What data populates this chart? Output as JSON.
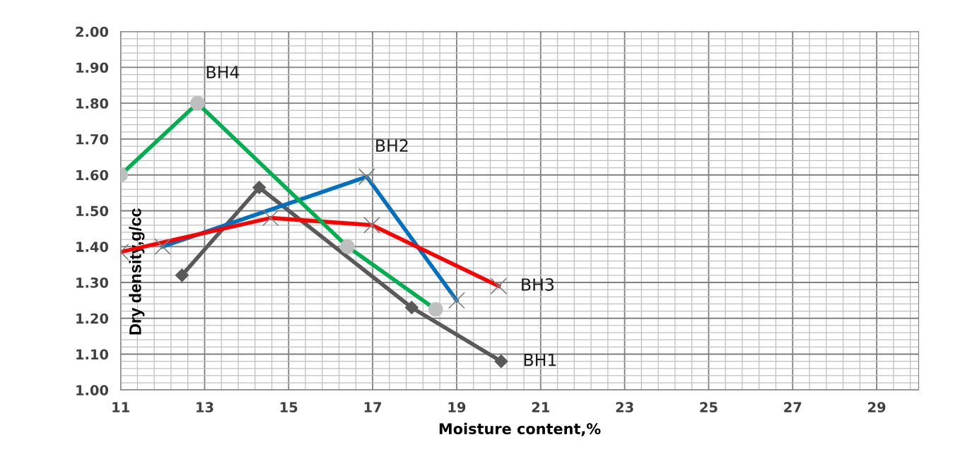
{
  "chart_data": {
    "type": "line",
    "xlabel": "Moisture content,%",
    "ylabel": "Dry density,g/cc",
    "xlim": [
      11,
      30
    ],
    "xticks": [
      11,
      13,
      15,
      17,
      19,
      21,
      23,
      25,
      27,
      29
    ],
    "ylim": [
      1.0,
      2.0
    ],
    "yticks": [
      {
        "value": 1.0,
        "label": "1.00"
      },
      {
        "value": 1.1,
        "label": "1.10"
      },
      {
        "value": 1.2,
        "label": "1.20"
      },
      {
        "value": 1.3,
        "label": "1.30"
      },
      {
        "value": 1.4,
        "label": "1.40"
      },
      {
        "value": 1.5,
        "label": "1.50"
      },
      {
        "value": 1.6,
        "label": "1.60"
      },
      {
        "value": 1.7,
        "label": "1.70"
      },
      {
        "value": 1.8,
        "label": "1.80"
      },
      {
        "value": 1.9,
        "label": "1.90"
      },
      {
        "value": 2.0,
        "label": "2.00"
      }
    ],
    "grid": true,
    "legend": false,
    "series": [
      {
        "color": "#595959",
        "marker": "diamond",
        "x": [
          12.46,
          14.3,
          17.93,
          20.06
        ],
        "values": [
          1.32,
          1.565,
          1.23,
          1.08
        ]
      },
      {
        "color": "#0070c0",
        "marker": "cross",
        "x": [
          12.0,
          16.86,
          19.0
        ],
        "values": [
          1.4,
          1.595,
          1.25
        ]
      },
      {
        "color": "#ff0000",
        "marker": "cross",
        "x": [
          11.0,
          14.57,
          16.98,
          20.0
        ],
        "values": [
          1.385,
          1.48,
          1.46,
          1.29
        ]
      },
      {
        "color": "#00b050",
        "marker": "circle",
        "x": [
          11.0,
          12.83,
          16.4,
          18.5
        ],
        "values": [
          1.6,
          1.8,
          1.4,
          1.225
        ]
      }
    ],
    "annotations": [
      {
        "text": "BH1",
        "x": 20.06,
        "y": 1.08
      },
      {
        "text": "BH2",
        "x": 16.86,
        "y": 1.595
      },
      {
        "text": "BH3",
        "x": 20.0,
        "y": 1.29
      },
      {
        "text": "BH4",
        "x": 12.83,
        "y": 1.8
      }
    ]
  }
}
